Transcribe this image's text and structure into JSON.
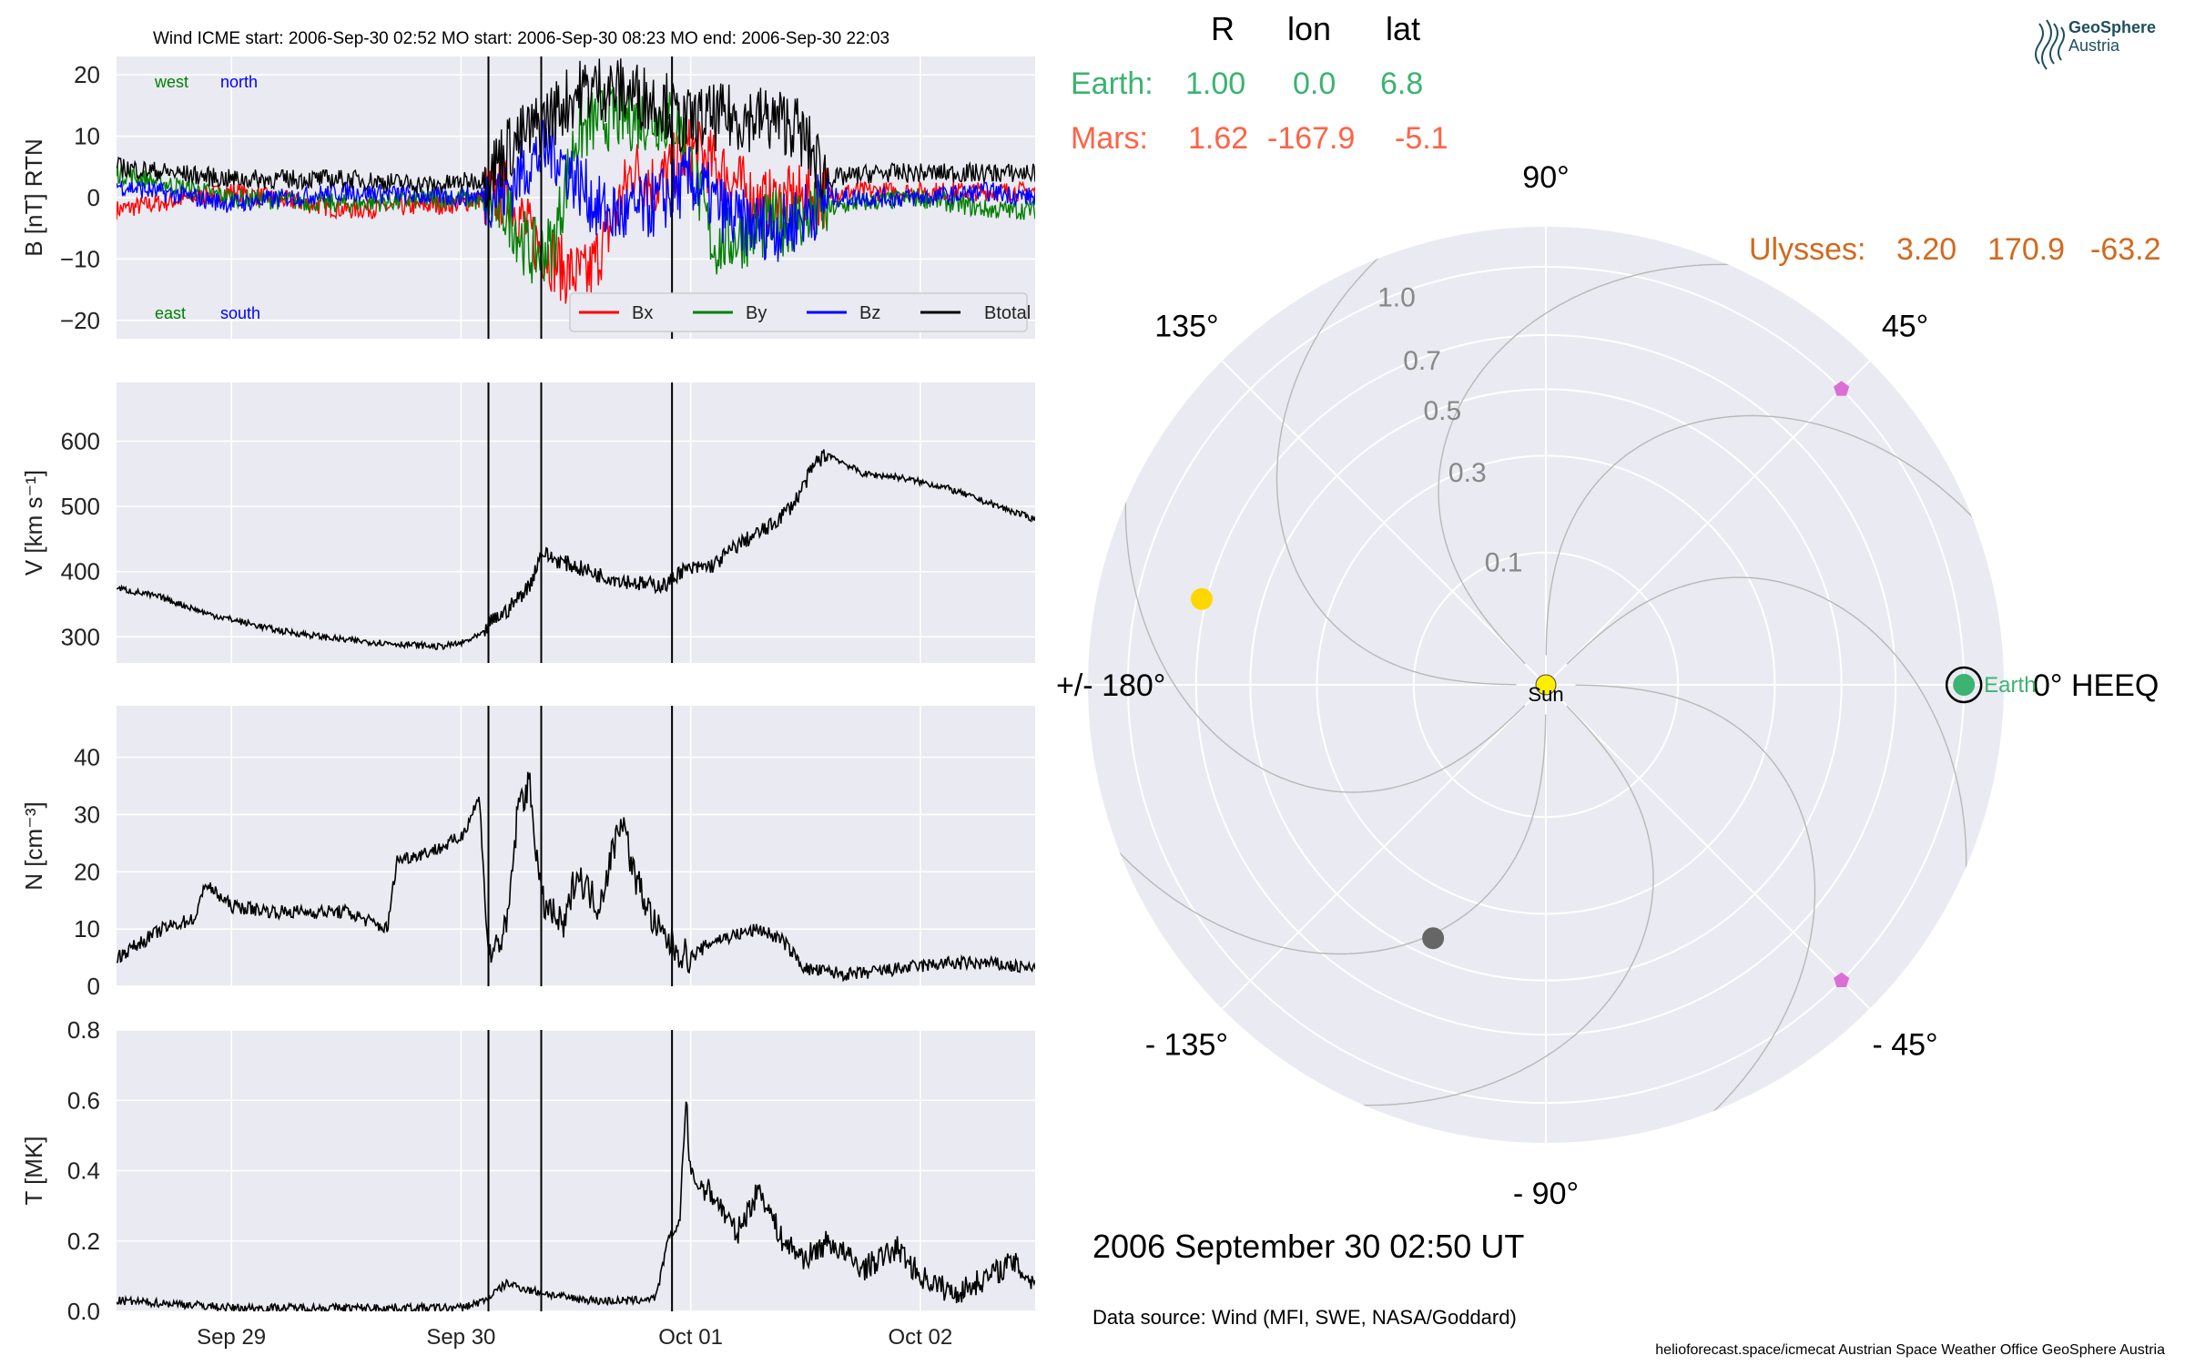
{
  "header": {
    "title": "Wind    ICME start: 2006-Sep-30 02:52   MO start: 2006-Sep-30 08:23   MO end: 2006-Sep-30 22:03"
  },
  "logo": {
    "line1": "GeoSphere",
    "line2": "Austria"
  },
  "positions": {
    "headers": [
      "R",
      "lon",
      "lat"
    ],
    "earth": {
      "label": "Earth:",
      "R": "1.00",
      "lon": "0.0",
      "lat": "6.8",
      "color": "#3cb371"
    },
    "mars": {
      "label": "Mars:",
      "R": "1.62",
      "lon": "-167.9",
      "lat": "-5.1",
      "color": "#ff6347"
    },
    "ulysses": {
      "label": "Ulysses:",
      "R": "3.20",
      "lon": "170.9",
      "lat": "-63.2",
      "color": "#d2691e"
    }
  },
  "polar": {
    "angle_labels": [
      "90°",
      "45°",
      "0° HEEQ",
      "- 45°",
      "- 90°",
      "- 135°",
      "+/- 180°",
      "135°"
    ],
    "radial_ticks": [
      0.1,
      0.3,
      0.5,
      0.7,
      1.0
    ],
    "sun_label": "Sun",
    "earth_label": "Earth",
    "bodies": [
      {
        "name": "Sun",
        "r": 0.0,
        "lon": 0,
        "color": "#ffee00"
      },
      {
        "name": "Earth",
        "r": 1.0,
        "lon": 0.0,
        "color": "#3cb371"
      },
      {
        "name": "Venus",
        "r": 0.72,
        "lon": 166,
        "color": "#ffd700"
      },
      {
        "name": "Mercury",
        "r": 0.44,
        "lon": -114,
        "color": "#666666"
      },
      {
        "name": "STEREO-A",
        "r": 1.0,
        "lon": 45,
        "color": "#da70d6"
      },
      {
        "name": "STEREO-B",
        "r": 1.0,
        "lon": -45,
        "color": "#da70d6"
      }
    ],
    "spiral_offsets": [
      0,
      45,
      90,
      135,
      180,
      225,
      270,
      315
    ]
  },
  "date_text": "2006 September 30  02:50 UT",
  "data_source": "Data source: Wind (MFI, SWE, NASA/Goddard)",
  "footer": "helioforecast.space/icmecat   Austrian Space Weather Office   GeoSphere Austria",
  "chart_data": {
    "type": "line",
    "x_range_days": [
      "2006-09-28 12:00",
      "2006-10-02 12:00"
    ],
    "x_ticks": [
      "Sep 29",
      "Sep 30",
      "Oct 01",
      "Oct 02"
    ],
    "event_lines": [
      "2006-09-30 02:52",
      "2006-09-30 08:23",
      "2006-09-30 22:03"
    ],
    "panels": [
      {
        "name": "B",
        "ylabel": "B [nT] RTN",
        "ylim": [
          -23,
          23
        ],
        "yticks": [
          20,
          10,
          0,
          -10,
          -20
        ],
        "ytick_labels": [
          "20",
          "10",
          "0",
          "−10",
          "−20"
        ],
        "annotations": [
          {
            "text": "west",
            "color": "#008000"
          },
          {
            "text": "north",
            "color": "#0000ff"
          },
          {
            "text": "east",
            "color": "#008000"
          },
          {
            "text": "south",
            "color": "#0000ff"
          }
        ],
        "legend": [
          "Bx",
          "By",
          "Bz",
          "Btotal"
        ],
        "series": [
          {
            "name": "Bx",
            "color": "#ff0000",
            "t": [
              -0.5,
              0.0,
              0.5,
              1.0,
              1.2,
              1.3,
              1.45,
              1.55,
              1.65,
              1.75,
              1.85,
              2.0,
              2.15,
              2.3,
              2.5,
              2.7,
              3.0,
              3.3,
              3.5
            ],
            "v": [
              -2,
              1,
              -2,
              -1,
              1,
              -6,
              -12,
              -13,
              -5,
              5,
              2,
              8,
              4,
              -1,
              0,
              1,
              1,
              1,
              1
            ]
          },
          {
            "name": "By",
            "color": "#008000",
            "t": [
              -0.5,
              0.0,
              0.5,
              1.0,
              1.2,
              1.3,
              1.4,
              1.5,
              1.6,
              1.7,
              1.85,
              1.95,
              2.1,
              2.3,
              2.5,
              2.7,
              3.0,
              3.3,
              3.5
            ],
            "v": [
              4,
              0,
              -1,
              0,
              -2,
              -9,
              -8,
              10,
              13,
              13,
              13,
              12,
              -8,
              -5,
              -3,
              -1,
              0,
              -2,
              -2
            ]
          },
          {
            "name": "Bz",
            "color": "#0000ff",
            "t": [
              -0.5,
              0.0,
              0.5,
              1.0,
              1.2,
              1.3,
              1.4,
              1.5,
              1.6,
              1.7,
              1.85,
              2.0,
              2.2,
              2.4,
              2.6,
              2.8,
              3.0,
              3.3,
              3.5
            ],
            "v": [
              2,
              -1,
              1,
              0,
              1,
              6,
              8,
              3,
              -2,
              -3,
              -1,
              3,
              -4,
              -5,
              0,
              0,
              0,
              1,
              0
            ]
          },
          {
            "name": "Btotal",
            "color": "#000000",
            "t": [
              -0.5,
              0.0,
              0.5,
              0.9,
              1.1,
              1.2,
              1.35,
              1.5,
              1.6,
              1.75,
              1.9,
              1.95,
              2.1,
              2.3,
              2.45,
              2.6,
              2.8,
              3.0,
              3.3,
              3.5
            ],
            "v": [
              5,
              3,
              3,
              2,
              3,
              8,
              12,
              17,
              18,
              17,
              15,
              12,
              13,
              13,
              12,
              3,
              4,
              4,
              4,
              4
            ]
          }
        ]
      },
      {
        "name": "V",
        "ylabel": "V [km s⁻¹]",
        "ylim": [
          260,
          690
        ],
        "yticks": [
          600,
          500,
          400,
          300
        ],
        "ytick_labels": [
          "600",
          "500",
          "400",
          "300"
        ],
        "series": [
          {
            "name": "V",
            "color": "#000000",
            "t": [
              -0.5,
              -0.3,
              -0.1,
              0.2,
              0.5,
              0.7,
              0.9,
              1.0,
              1.1,
              1.12,
              1.2,
              1.3,
              1.35,
              1.4,
              1.6,
              1.8,
              1.9,
              1.95,
              2.1,
              2.2,
              2.35,
              2.45,
              2.55,
              2.6,
              2.75,
              2.9,
              3.1,
              3.3,
              3.5
            ],
            "v": [
              375,
              360,
              335,
              310,
              295,
              290,
              285,
              290,
              305,
              320,
              340,
              380,
              430,
              420,
              395,
              380,
              380,
              400,
              410,
              440,
              470,
              505,
              570,
              580,
              550,
              545,
              530,
              505,
              480
            ]
          }
        ]
      },
      {
        "name": "N",
        "ylabel": "N [cm⁻³]",
        "ylim": [
          0,
          49
        ],
        "yticks": [
          40,
          30,
          20,
          10,
          0
        ],
        "ytick_labels": [
          "40",
          "30",
          "20",
          "10",
          "0"
        ],
        "series": [
          {
            "name": "N",
            "color": "#000000",
            "t": [
              -0.5,
              -0.3,
              -0.15,
              -0.12,
              0.0,
              0.2,
              0.5,
              0.68,
              0.72,
              0.9,
              1.0,
              1.08,
              1.12,
              1.2,
              1.25,
              1.3,
              1.35,
              1.45,
              1.5,
              1.6,
              1.7,
              1.75,
              1.85,
              1.95,
              2.0,
              2.1,
              2.3,
              2.4,
              2.5,
              2.7,
              2.9,
              3.1,
              3.3,
              3.5
            ],
            "v": [
              5,
              10,
              12,
              18,
              14,
              13,
              13,
              10,
              22,
              24,
              26,
              33,
              5,
              10,
              32,
              35,
              15,
              10,
              20,
              14,
              30,
              20,
              10,
              6,
              5,
              8,
              10,
              8,
              3,
              2,
              3,
              4,
              4,
              3
            ]
          }
        ]
      },
      {
        "name": "T",
        "ylabel": "T [MK]",
        "ylim": [
          0,
          0.8
        ],
        "yticks": [
          0.8,
          0.6,
          0.4,
          0.2,
          0.0
        ],
        "ytick_labels": [
          "0.8",
          "0.6",
          "0.4",
          "0.2",
          "0.0"
        ],
        "series": [
          {
            "name": "T",
            "color": "#000000",
            "t": [
              -0.5,
              -0.2,
              0.0,
              0.5,
              1.0,
              1.1,
              1.2,
              1.3,
              1.45,
              1.6,
              1.75,
              1.85,
              1.9,
              1.95,
              1.98,
              2.0,
              2.1,
              2.2,
              2.3,
              2.4,
              2.5,
              2.6,
              2.75,
              2.9,
              3.0,
              3.15,
              3.3,
              3.4,
              3.5
            ],
            "v": [
              0.03,
              0.02,
              0.01,
              0.01,
              0.01,
              0.03,
              0.08,
              0.06,
              0.04,
              0.03,
              0.03,
              0.04,
              0.2,
              0.25,
              0.6,
              0.38,
              0.33,
              0.22,
              0.35,
              0.2,
              0.15,
              0.2,
              0.12,
              0.18,
              0.1,
              0.05,
              0.1,
              0.14,
              0.08
            ]
          }
        ]
      }
    ]
  }
}
